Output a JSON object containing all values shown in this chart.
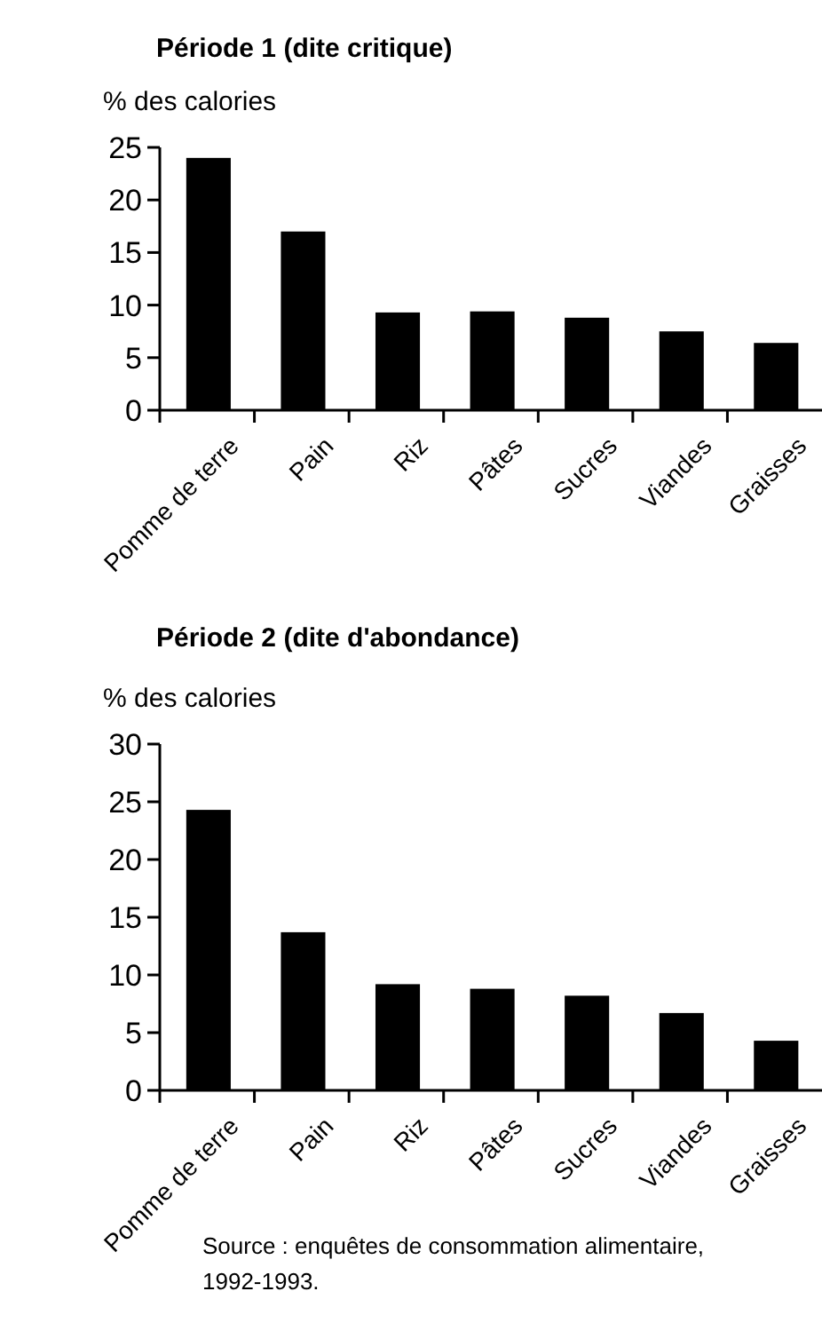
{
  "chart_data": [
    {
      "type": "bar",
      "title": "Période 1 (dite critique)",
      "ylabel": "% des calories",
      "categories": [
        "Pomme de terre",
        "Pain",
        "Riz",
        "Pâtes",
        "Sucres",
        "Viandes",
        "Graisses"
      ],
      "values": [
        24,
        17,
        9.3,
        9.4,
        8.8,
        7.5,
        6.4
      ],
      "color": "#000000",
      "ylim": [
        0,
        25
      ],
      "yticks": [
        0,
        5,
        10,
        15,
        20,
        25
      ],
      "grid": false
    },
    {
      "type": "bar",
      "title": "Période 2 (dite d'abondance)",
      "ylabel": "% des calories",
      "categories": [
        "Pomme de terre",
        "Pain",
        "Riz",
        "Pâtes",
        "Sucres",
        "Viandes",
        "Graisses"
      ],
      "values": [
        24.3,
        13.7,
        9.2,
        8.8,
        8.2,
        6.7,
        4.3
      ],
      "color": "#000000",
      "ylim": [
        0,
        30
      ],
      "yticks": [
        0,
        5,
        10,
        15,
        20,
        25,
        30
      ],
      "grid": false,
      "annotations": [
        "Source : enquêtes de consommation alimentaire, 1992-1993."
      ]
    }
  ]
}
